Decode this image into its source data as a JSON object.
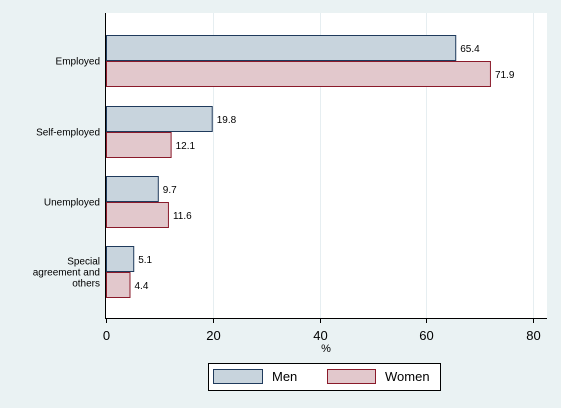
{
  "chart_data": {
    "type": "bar",
    "orientation": "horizontal",
    "categories": [
      [
        "Employed"
      ],
      [
        "Self-employed"
      ],
      [
        "Unemployed"
      ],
      [
        "Special",
        "agreement and",
        "others"
      ]
    ],
    "series": [
      {
        "name": "Men",
        "values": [
          65.4,
          19.8,
          9.7,
          5.1
        ],
        "fill": "#c8d4dd",
        "stroke": "#1f3a5c"
      },
      {
        "name": "Women",
        "values": [
          71.9,
          12.1,
          11.6,
          4.4
        ],
        "fill": "#e2c8cc",
        "stroke": "#8a1a2a"
      }
    ],
    "value_labels": [
      [
        "65.4",
        "19.8",
        "9.7",
        "5.1"
      ],
      [
        "71.9",
        "12.1",
        "11.6",
        "4.4"
      ]
    ],
    "xlabel": "%",
    "xlim": [
      0,
      82
    ],
    "xticks": [
      0,
      20,
      40,
      60,
      80
    ],
    "grid": "vertical",
    "legend": "bottom"
  },
  "colors": {
    "background": "#eaf2f3",
    "plot_background": "#ffffff",
    "grid": "#e6eef1"
  }
}
